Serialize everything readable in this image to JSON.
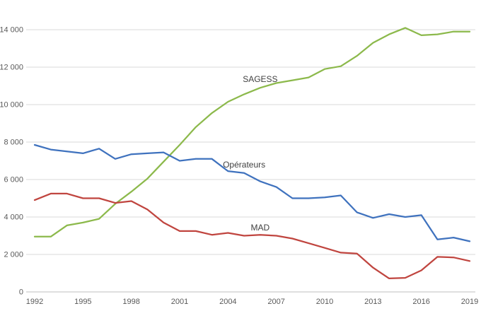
{
  "chart": {
    "background": "#ffffff",
    "gridline_color": "#d9d9d9",
    "axis_line_color": "#bfbfbf",
    "tick_label_color": "#595959",
    "series_label_color": "#3f3f3f"
  },
  "chart_data": {
    "type": "line",
    "title": "",
    "xlabel": "",
    "ylabel": "",
    "grid": "horizontal",
    "legend": "inline-labels",
    "x": [
      1992,
      1993,
      1994,
      1995,
      1996,
      1997,
      1998,
      1999,
      2000,
      2001,
      2002,
      2003,
      2004,
      2005,
      2006,
      2007,
      2008,
      2009,
      2010,
      2011,
      2012,
      2013,
      2014,
      2015,
      2016,
      2017,
      2018,
      2019
    ],
    "x_tick_years": [
      1992,
      1995,
      1998,
      2001,
      2004,
      2007,
      2010,
      2013,
      2016,
      2019
    ],
    "x_tick_labels": [
      "1992",
      "1995",
      "1998",
      "2001",
      "2004",
      "2007",
      "2010",
      "2013",
      "2016",
      "2019"
    ],
    "y_ticks": [
      0,
      2000,
      4000,
      6000,
      8000,
      10000,
      12000,
      14000
    ],
    "y_tick_labels": [
      "0",
      "2 000",
      "4 000",
      "6 000",
      "8 000",
      "10 000",
      "12 000",
      "14 000"
    ],
    "ylim": [
      0,
      14800
    ],
    "series": [
      {
        "name": "SAGESS",
        "color": "#8cb94b",
        "values": [
          2950,
          2950,
          3550,
          3700,
          3900,
          4700,
          5350,
          6050,
          6950,
          7850,
          8800,
          9550,
          10150,
          10550,
          10900,
          11150,
          11300,
          11450,
          11900,
          12050,
          12600,
          13300,
          13750,
          14100,
          13700,
          13750,
          13900,
          13900
        ],
        "label": {
          "text": "SAGESS",
          "year": 2006,
          "value": 11350
        }
      },
      {
        "name": "Opérateurs",
        "color": "#3f72be",
        "values": [
          7850,
          7600,
          7500,
          7400,
          7650,
          7100,
          7350,
          7400,
          7450,
          7000,
          7100,
          7100,
          6450,
          6350,
          5900,
          5600,
          5000,
          5000,
          5050,
          5150,
          4250,
          3950,
          4150,
          4000,
          4100,
          2800,
          2900,
          2700
        ],
        "label": {
          "text": "Opérateurs",
          "year": 2005,
          "value": 6800
        }
      },
      {
        "name": "MAD",
        "color": "#c0453f",
        "values": [
          4900,
          5250,
          5250,
          5000,
          5000,
          4750,
          4850,
          4400,
          3700,
          3250,
          3250,
          3050,
          3150,
          3000,
          3050,
          3000,
          2850,
          2600,
          2350,
          2100,
          2050,
          1300,
          720,
          750,
          1150,
          1870,
          1840,
          1650
        ],
        "label": {
          "text": "MAD",
          "year": 2006,
          "value": 3430
        }
      }
    ]
  }
}
